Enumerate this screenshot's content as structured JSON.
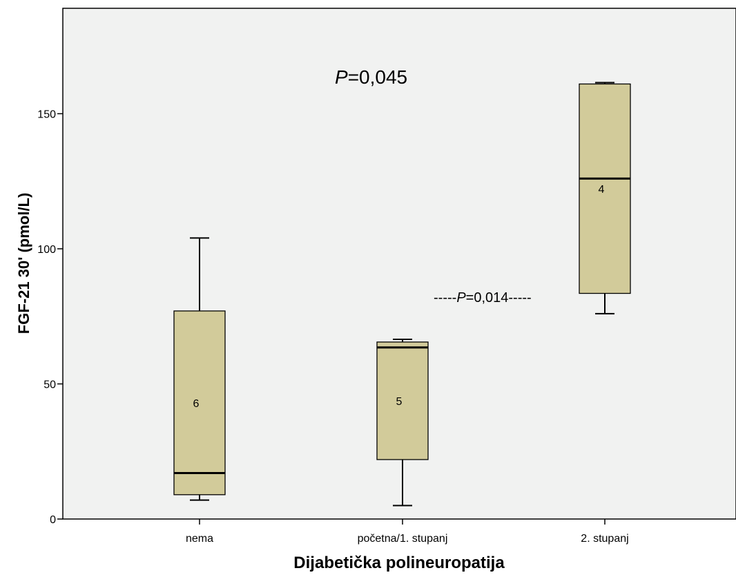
{
  "chart_data": {
    "type": "boxplot",
    "xlabel": "Dijabetička polineuropatija",
    "ylabel": "FGF-21 30' (pmol/L)",
    "ylim": [
      0,
      185
    ],
    "yticks": [
      0,
      50,
      100,
      150
    ],
    "grid": false,
    "background_color": "#f1f2f1",
    "box_color": "#d2cb9a",
    "categories": [
      "nema",
      "početna/1. stupanj",
      "2. stupanj"
    ],
    "boxes": [
      {
        "category": "nema",
        "min": 7,
        "q1": 9,
        "median": 17,
        "q3": 77,
        "max": 104,
        "n_label": "6"
      },
      {
        "category": "početna/1. stupanj",
        "min": 5,
        "q1": 22,
        "median": 63.5,
        "q3": 65.5,
        "max": 66.5,
        "n_label": "5"
      },
      {
        "category": "2. stupanj",
        "min": 76,
        "q1": 83.5,
        "median": 126,
        "q3": 161,
        "max": 161.5,
        "n_label": "4"
      }
    ],
    "annotations": {
      "overall_p": {
        "italic": "P",
        "rest": "=0,045"
      },
      "pairwise_p": {
        "prefix": "-----",
        "italic": "P",
        "rest": "=0,014-----"
      }
    }
  }
}
